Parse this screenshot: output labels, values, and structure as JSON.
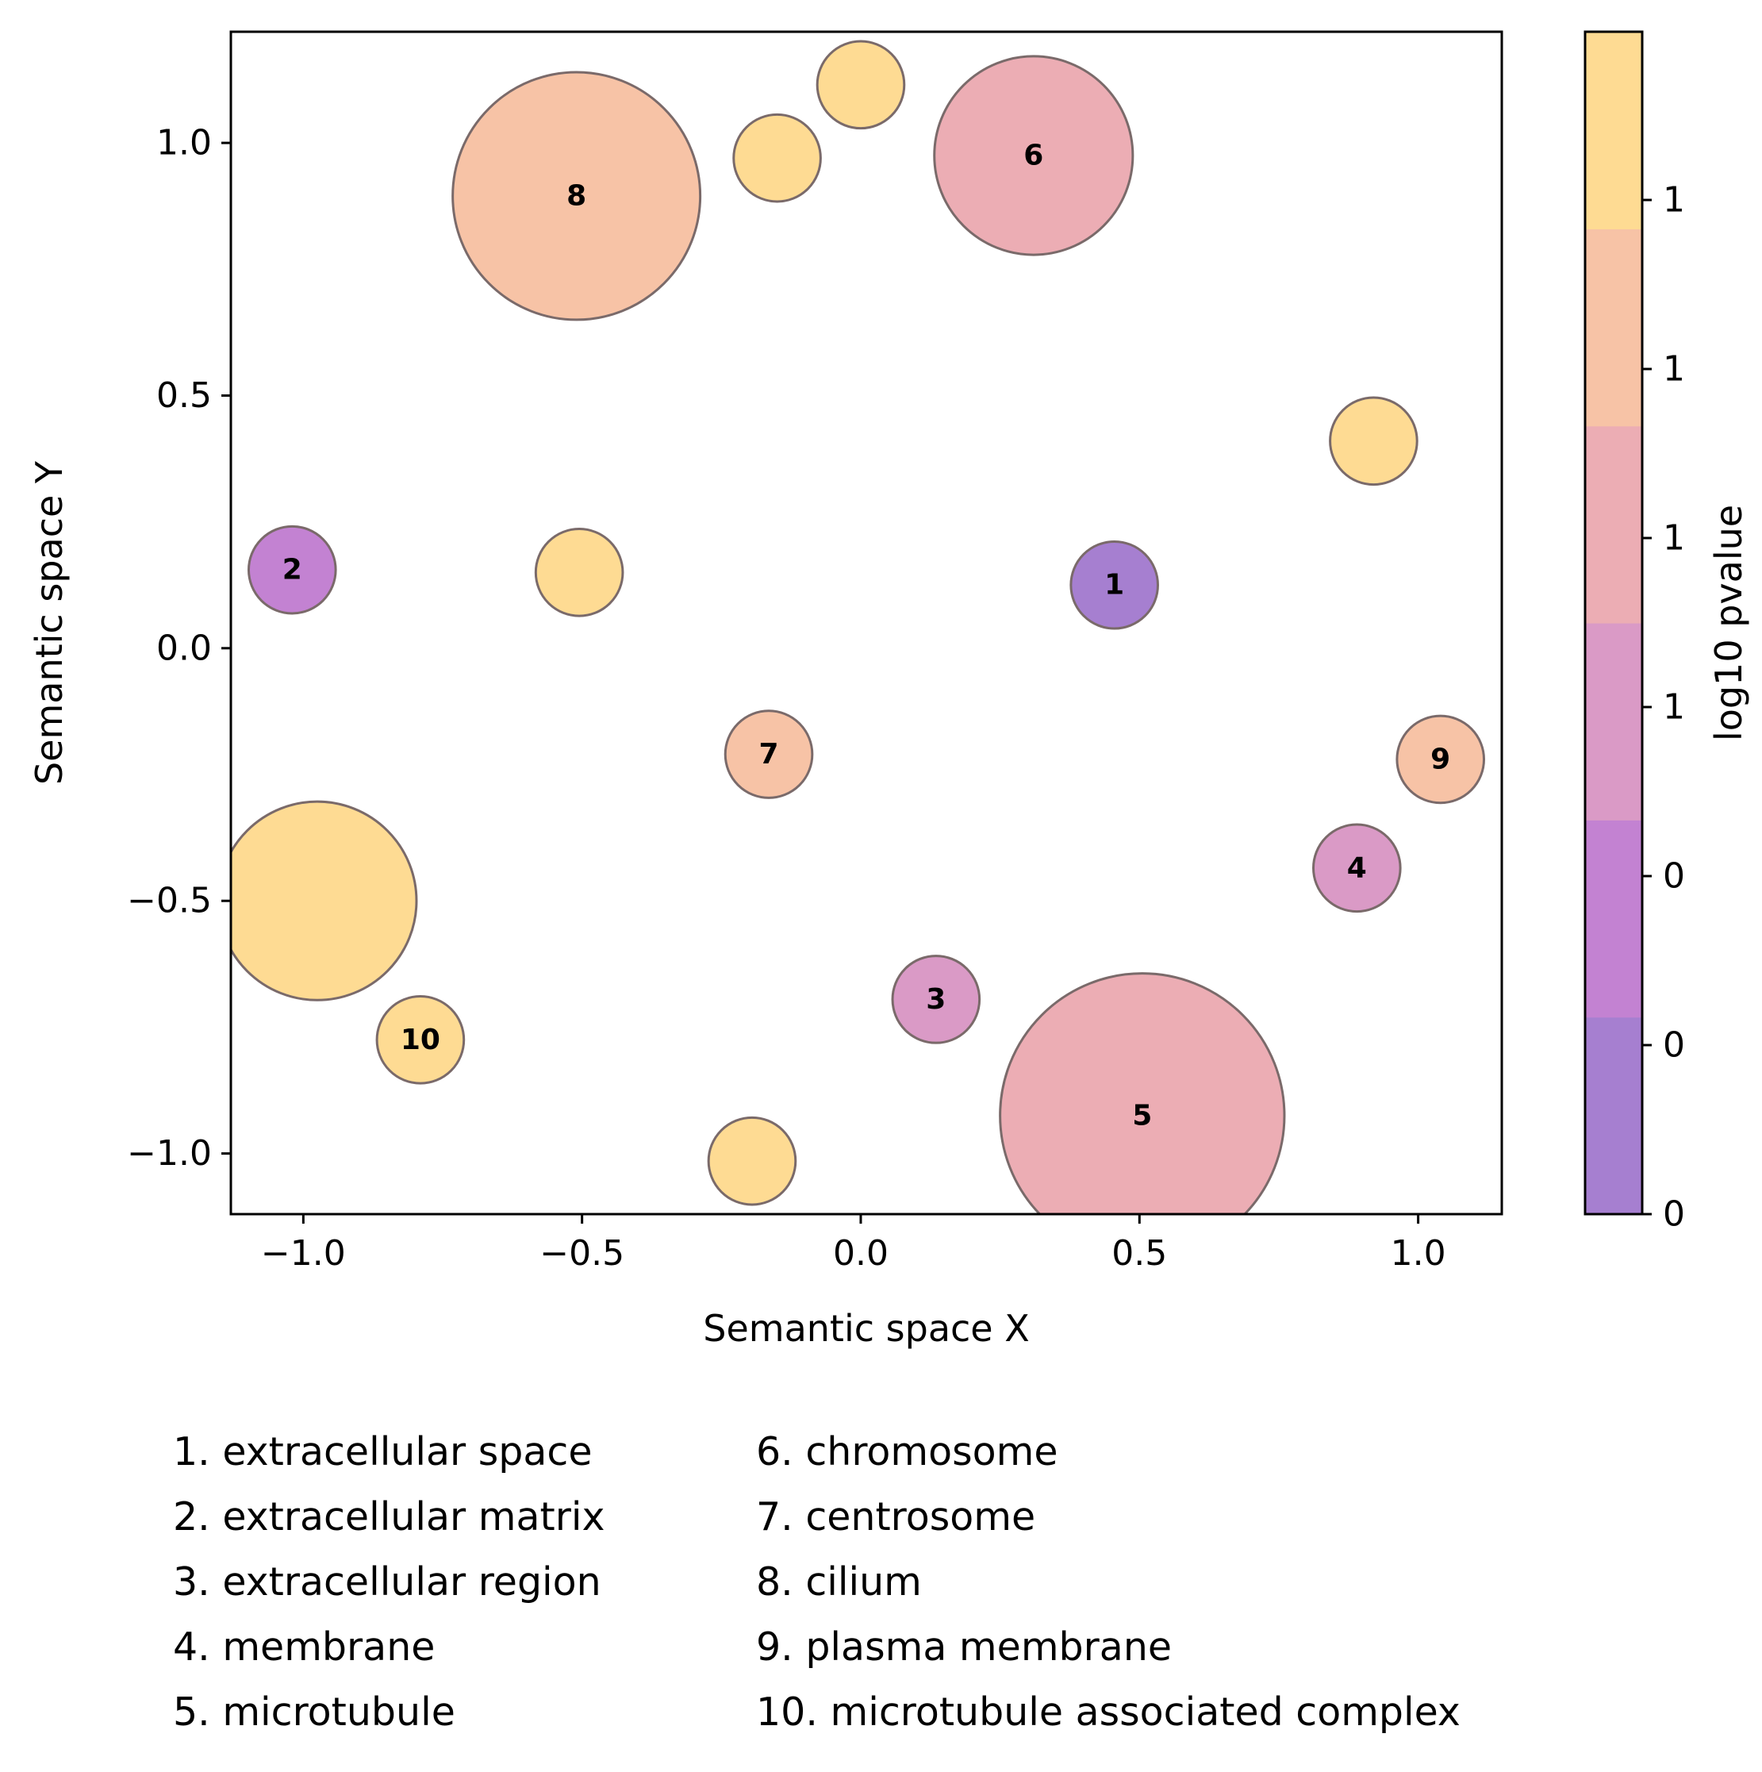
{
  "chart_data": {
    "type": "scatter",
    "xlabel": "Semantic space X",
    "ylabel": "Semantic space Y",
    "xlim": [
      -1.13,
      1.15
    ],
    "ylim": [
      -1.12,
      1.22
    ],
    "xticks": [
      -1.0,
      -0.5,
      0.0,
      0.5,
      1.0
    ],
    "xtick_labels": [
      "−1.0",
      "−0.5",
      "0.0",
      "0.5",
      "1.0"
    ],
    "yticks": [
      -1.0,
      -0.5,
      0.0,
      0.5,
      1.0
    ],
    "ytick_labels": [
      "−1.0",
      "−0.5",
      "0.0",
      "0.5",
      "1.0"
    ],
    "grid": false,
    "marker_edge_color": "#7a6a6a",
    "points": [
      {
        "x": 0.455,
        "y": 0.125,
        "r": 0.078,
        "color": "#a67fd0",
        "label": "1"
      },
      {
        "x": -1.02,
        "y": 0.155,
        "r": 0.078,
        "color": "#c382d2",
        "label": "2"
      },
      {
        "x": 0.135,
        "y": -0.695,
        "r": 0.078,
        "color": "#da9ac6",
        "label": "3"
      },
      {
        "x": 0.89,
        "y": -0.435,
        "r": 0.078,
        "color": "#da9ac6",
        "label": "4"
      },
      {
        "x": 0.505,
        "y": -0.925,
        "r": 0.255,
        "color": "#ecadb4",
        "label": "5"
      },
      {
        "x": 0.31,
        "y": 0.975,
        "r": 0.178,
        "color": "#ecadb4",
        "label": "6"
      },
      {
        "x": -0.165,
        "y": -0.21,
        "r": 0.078,
        "color": "#f7c3a6",
        "label": "7"
      },
      {
        "x": -0.51,
        "y": 0.895,
        "r": 0.222,
        "color": "#f7c3a6",
        "label": "8"
      },
      {
        "x": 1.04,
        "y": -0.22,
        "r": 0.078,
        "color": "#f7c3a6",
        "label": "9"
      },
      {
        "x": -0.79,
        "y": -0.775,
        "r": 0.078,
        "color": "#fedb93",
        "label": "10"
      },
      {
        "x": 0.0,
        "y": 1.115,
        "r": 0.078,
        "color": "#fedb93",
        "label": ""
      },
      {
        "x": -0.15,
        "y": 0.97,
        "r": 0.078,
        "color": "#fedb93",
        "label": ""
      },
      {
        "x": 0.92,
        "y": 0.41,
        "r": 0.078,
        "color": "#fedb93",
        "label": ""
      },
      {
        "x": -0.505,
        "y": 0.15,
        "r": 0.078,
        "color": "#fedb93",
        "label": ""
      },
      {
        "x": -0.975,
        "y": -0.5,
        "r": 0.178,
        "color": "#fedb93",
        "label": ""
      },
      {
        "x": -0.195,
        "y": -1.015,
        "r": 0.078,
        "color": "#fedb93",
        "label": ""
      }
    ],
    "colorbar": {
      "label": "log10 pvalue",
      "colors": [
        "#a67fd0",
        "#c382d2",
        "#da9ac6",
        "#ecadb4",
        "#f7c3a6",
        "#fedb93"
      ],
      "tick_labels": [
        "0",
        "0",
        "0",
        "1",
        "1",
        "1",
        "1"
      ]
    },
    "legend_items": [
      "1. extracellular space",
      "2. extracellular matrix",
      "3. extracellular region",
      "4. membrane",
      "5. microtubule",
      "6. chromosome",
      "7. centrosome",
      "8. cilium",
      "9. plasma membrane",
      "10. microtubule associated complex"
    ]
  }
}
